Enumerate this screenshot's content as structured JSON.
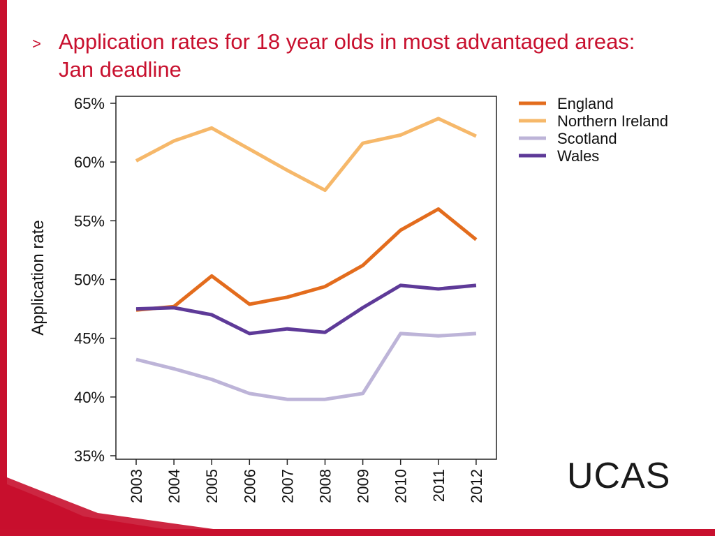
{
  "slide": {
    "bullet": ">",
    "title": "Application rates for 18 year olds in most advantaged areas: Jan deadline",
    "logo_text": "UCAS",
    "accent_color": "#c8102e"
  },
  "chart_data": {
    "type": "line",
    "title": "",
    "xlabel": "",
    "ylabel": "Application rate",
    "x": [
      "2003",
      "2004",
      "2005",
      "2006",
      "2007",
      "2008",
      "2009",
      "2010",
      "2011",
      "2012"
    ],
    "ylim": [
      0.35,
      0.65
    ],
    "yticks": [
      "65%",
      "60%",
      "55%",
      "50%",
      "45%",
      "40%",
      "35%"
    ],
    "ytick_values": [
      0.65,
      0.6,
      0.55,
      0.5,
      0.45,
      0.4,
      0.35
    ],
    "grid": false,
    "legend_position": "right",
    "series": [
      {
        "name": "England",
        "color": "#e36c1d",
        "values": [
          0.474,
          0.477,
          0.503,
          0.479,
          0.485,
          0.494,
          0.512,
          0.542,
          0.56,
          0.534
        ]
      },
      {
        "name": "Northern Ireland",
        "color": "#f6b86a",
        "values": [
          0.601,
          0.618,
          0.629,
          0.611,
          0.593,
          0.576,
          0.616,
          0.623,
          0.637,
          0.622
        ]
      },
      {
        "name": "Scotland",
        "color": "#bdb4d8",
        "values": [
          0.432,
          0.424,
          0.415,
          0.403,
          0.398,
          0.398,
          0.403,
          0.454,
          0.452,
          0.454
        ]
      },
      {
        "name": "Wales",
        "color": "#5e3a98",
        "values": [
          0.475,
          0.476,
          0.47,
          0.454,
          0.458,
          0.455,
          0.476,
          0.495,
          0.492,
          0.495
        ]
      }
    ]
  }
}
